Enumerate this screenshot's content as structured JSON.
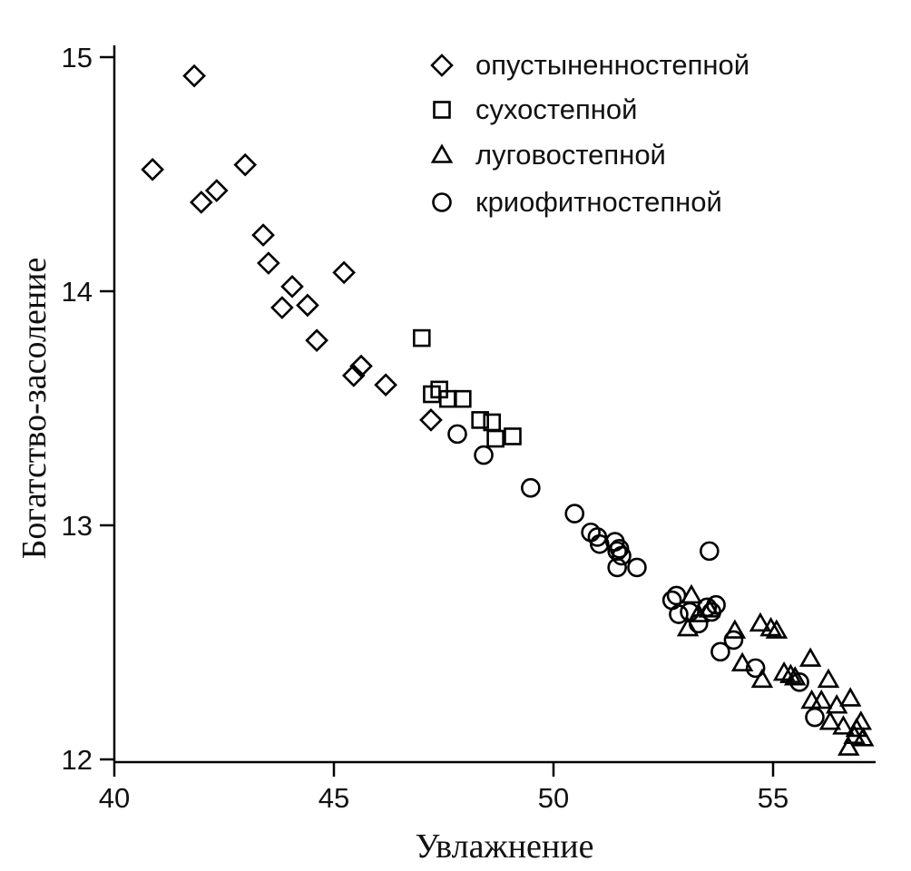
{
  "chart_data": {
    "type": "scatter",
    "xlabel": "Увлажнение",
    "ylabel": "Богатство-засоление",
    "xlim": [
      40,
      57.2
    ],
    "ylim": [
      12,
      15.05
    ],
    "xticks": [
      40,
      45,
      50,
      55
    ],
    "yticks": [
      12,
      13,
      14,
      15
    ],
    "grid": false,
    "legend_position": "top-right",
    "series": [
      {
        "name": "опустыненностепной",
        "marker": "diamond",
        "points": [
          [
            40.87,
            14.52
          ],
          [
            41.82,
            14.92
          ],
          [
            41.98,
            14.38
          ],
          [
            42.33,
            14.43
          ],
          [
            42.98,
            14.54
          ],
          [
            43.39,
            14.24
          ],
          [
            43.51,
            14.12
          ],
          [
            44.05,
            14.02
          ],
          [
            43.82,
            13.93
          ],
          [
            44.4,
            13.94
          ],
          [
            45.23,
            14.08
          ],
          [
            44.61,
            13.79
          ],
          [
            45.62,
            13.68
          ],
          [
            45.45,
            13.64
          ],
          [
            46.18,
            13.6
          ],
          [
            47.21,
            13.45
          ]
        ]
      },
      {
        "name": "сухостепной",
        "marker": "square",
        "points": [
          [
            47.0,
            13.8
          ],
          [
            47.23,
            13.56
          ],
          [
            47.4,
            13.58
          ],
          [
            47.6,
            13.54
          ],
          [
            47.93,
            13.54
          ],
          [
            48.33,
            13.45
          ],
          [
            48.6,
            13.44
          ],
          [
            48.68,
            13.37
          ],
          [
            49.07,
            13.38
          ]
        ]
      },
      {
        "name": "луговостепной",
        "marker": "triangle",
        "points": [
          [
            53.14,
            12.7
          ],
          [
            53.06,
            12.56
          ],
          [
            53.3,
            12.62
          ],
          [
            53.55,
            12.64
          ],
          [
            54.13,
            12.55
          ],
          [
            54.71,
            12.58
          ],
          [
            54.95,
            12.56
          ],
          [
            55.08,
            12.55
          ],
          [
            54.3,
            12.41
          ],
          [
            54.75,
            12.34
          ],
          [
            55.25,
            12.37
          ],
          [
            55.4,
            12.36
          ],
          [
            55.5,
            12.35
          ],
          [
            55.85,
            12.43
          ],
          [
            56.26,
            12.34
          ],
          [
            55.88,
            12.25
          ],
          [
            56.1,
            12.25
          ],
          [
            56.45,
            12.23
          ],
          [
            56.76,
            12.26
          ],
          [
            56.3,
            12.16
          ],
          [
            56.6,
            12.14
          ],
          [
            56.85,
            12.1
          ],
          [
            57.0,
            12.16
          ],
          [
            56.72,
            12.05
          ],
          [
            57.05,
            12.09
          ],
          [
            56.9,
            12.13
          ]
        ]
      },
      {
        "name": "криофитностепной",
        "marker": "circle",
        "points": [
          [
            47.81,
            13.39
          ],
          [
            48.41,
            13.3
          ],
          [
            49.48,
            13.16
          ],
          [
            50.48,
            13.05
          ],
          [
            50.85,
            12.97
          ],
          [
            51.0,
            12.95
          ],
          [
            51.05,
            12.92
          ],
          [
            51.4,
            12.93
          ],
          [
            51.45,
            12.89
          ],
          [
            51.5,
            12.9
          ],
          [
            51.55,
            12.87
          ],
          [
            51.45,
            12.82
          ],
          [
            51.9,
            12.82
          ],
          [
            53.55,
            12.89
          ],
          [
            52.7,
            12.68
          ],
          [
            52.8,
            12.7
          ],
          [
            52.85,
            12.62
          ],
          [
            53.1,
            12.63
          ],
          [
            53.3,
            12.58
          ],
          [
            53.5,
            12.65
          ],
          [
            53.6,
            12.63
          ],
          [
            53.7,
            12.66
          ],
          [
            53.8,
            12.46
          ],
          [
            54.1,
            12.51
          ],
          [
            54.6,
            12.39
          ],
          [
            55.6,
            12.33
          ],
          [
            55.95,
            12.18
          ]
        ]
      }
    ]
  }
}
